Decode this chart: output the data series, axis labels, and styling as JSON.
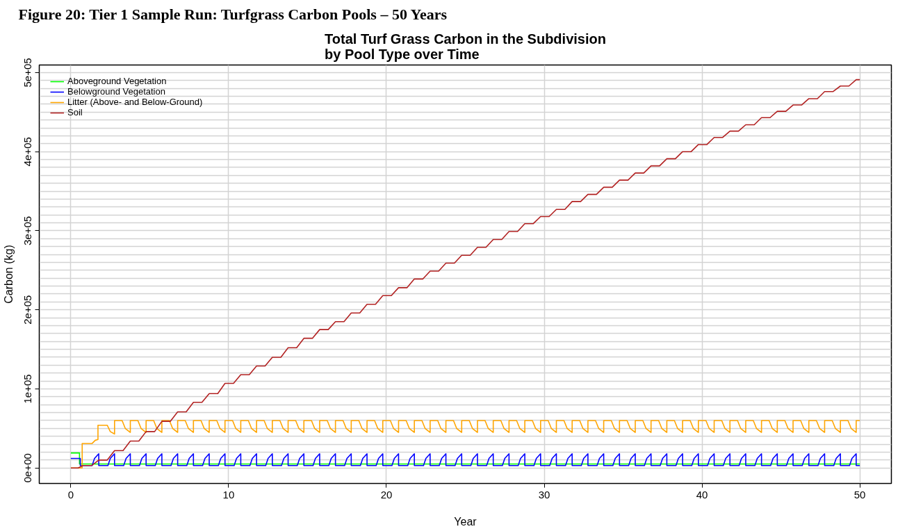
{
  "chart_data": {
    "type": "line",
    "title": "Total Turf Grass Carbon in the Subdivision\nby Pool Type over Time",
    "xlabel": "Year",
    "ylabel": "Carbon (kg)",
    "annotations": [
      "Figure 20: Tier 1 Sample Run: Turfgrass Carbon Pools – 50 Years"
    ],
    "xlim": [
      -2,
      52
    ],
    "ylim": [
      -19600,
      509600
    ],
    "xticks": [
      0,
      10,
      20,
      30,
      40,
      50
    ],
    "yticks": [
      {
        "value": 0,
        "label": "0e+00"
      },
      {
        "value": 100000,
        "label": "1e+05"
      },
      {
        "value": 200000,
        "label": "2e+05"
      },
      {
        "value": 300000,
        "label": "3e+05"
      },
      {
        "value": 400000,
        "label": "4e+05"
      },
      {
        "value": 500000,
        "label": "5e+05"
      }
    ],
    "grid": true,
    "legend": "top left",
    "marker": "none",
    "series": [
      {
        "name": "Aboveground Vegetation",
        "color": "#00ff00",
        "x": [
          0,
          0.55,
          0.55,
          50
        ],
        "values": [
          19000,
          19000,
          5000,
          5000
        ]
      },
      {
        "name": "Belowground Vegetation",
        "color": "#0000ff",
        "x": [
          0,
          0.6,
          0.6,
          1.35,
          1.5,
          1.77,
          1.77,
          2.35,
          2.5,
          2.77,
          2.77,
          3.35,
          3.5,
          3.77,
          3.77,
          4.35,
          4.5,
          4.77,
          4.77,
          5.35,
          5.5,
          5.77,
          5.77,
          6.35,
          6.5,
          6.77,
          6.77,
          7.35,
          7.5,
          7.77,
          7.77,
          8.35,
          8.5,
          8.77,
          8.77,
          9.35,
          9.5,
          9.77,
          9.77,
          10.35,
          10.5,
          10.77,
          10.77,
          11.35,
          11.5,
          11.77,
          11.77,
          12.35,
          12.5,
          12.77,
          12.77,
          13.35,
          13.5,
          13.77,
          13.77,
          14.35,
          14.5,
          14.77,
          14.77,
          15.35,
          15.5,
          15.77,
          15.77,
          16.35,
          16.5,
          16.77,
          16.77,
          17.35,
          17.5,
          17.77,
          17.77,
          18.35,
          18.5,
          18.77,
          18.77,
          19.35,
          19.5,
          19.77,
          19.77,
          20.35,
          20.5,
          20.77,
          20.77,
          21.35,
          21.5,
          21.77,
          21.77,
          22.35,
          22.5,
          22.77,
          22.77,
          23.35,
          23.5,
          23.77,
          23.77,
          24.35,
          24.5,
          24.77,
          24.77,
          25.35,
          25.5,
          25.77,
          25.77,
          26.35,
          26.5,
          26.77,
          26.77,
          27.35,
          27.5,
          27.77,
          27.77,
          28.35,
          28.5,
          28.77,
          28.77,
          29.35,
          29.5,
          29.77,
          29.77,
          30.35,
          30.5,
          30.77,
          30.77,
          31.35,
          31.5,
          31.77,
          31.77,
          32.35,
          32.5,
          32.77,
          32.77,
          33.35,
          33.5,
          33.77,
          33.77,
          34.35,
          34.5,
          34.77,
          34.77,
          35.35,
          35.5,
          35.77,
          35.77,
          36.35,
          36.5,
          36.77,
          36.77,
          37.35,
          37.5,
          37.77,
          37.77,
          38.35,
          38.5,
          38.77,
          38.77,
          39.35,
          39.5,
          39.77,
          39.77,
          40.35,
          40.5,
          40.77,
          40.77,
          41.35,
          41.5,
          41.77,
          41.77,
          42.35,
          42.5,
          42.77,
          42.77,
          43.35,
          43.5,
          43.77,
          43.77,
          44.35,
          44.5,
          44.77,
          44.77,
          45.35,
          45.5,
          45.77,
          45.77,
          46.35,
          46.5,
          46.77,
          46.77,
          47.35,
          47.5,
          47.77,
          47.77,
          48.35,
          48.5,
          48.77,
          48.77,
          49.35,
          49.5,
          49.77,
          49.77,
          50
        ],
        "values": [
          12000,
          12000,
          3000,
          3000,
          12000,
          18000,
          3000,
          3000,
          12000,
          18000,
          3000,
          3000,
          12000,
          18000,
          3000,
          3000,
          12000,
          18000,
          3000,
          3000,
          12000,
          18000,
          3000,
          3000,
          12000,
          18000,
          3000,
          3000,
          12000,
          18000,
          3000,
          3000,
          12000,
          18000,
          3000,
          3000,
          12000,
          18000,
          3000,
          3000,
          12000,
          18000,
          3000,
          3000,
          12000,
          18000,
          3000,
          3000,
          12000,
          18000,
          3000,
          3000,
          12000,
          18000,
          3000,
          3000,
          12000,
          18000,
          3000,
          3000,
          12000,
          18000,
          3000,
          3000,
          12000,
          18000,
          3000,
          3000,
          12000,
          18000,
          3000,
          3000,
          12000,
          18000,
          3000,
          3000,
          12000,
          18000,
          3000,
          3000,
          12000,
          18000,
          3000,
          3000,
          12000,
          18000,
          3000,
          3000,
          12000,
          18000,
          3000,
          3000,
          12000,
          18000,
          3000,
          3000,
          12000,
          18000,
          3000,
          3000,
          12000,
          18000,
          3000,
          3000,
          12000,
          18000,
          3000,
          3000,
          12000,
          18000,
          3000,
          3000,
          12000,
          18000,
          3000,
          3000,
          12000,
          18000,
          3000,
          3000,
          12000,
          18000,
          3000,
          3000,
          12000,
          18000,
          3000,
          3000,
          12000,
          18000,
          3000,
          3000,
          12000,
          18000,
          3000,
          3000,
          12000,
          18000,
          3000,
          3000,
          12000,
          18000,
          3000,
          3000,
          12000,
          18000,
          3000,
          3000,
          12000,
          18000,
          3000,
          3000,
          12000,
          18000,
          3000,
          3000,
          12000,
          18000,
          3000,
          3000,
          12000,
          18000,
          3000,
          3000,
          12000,
          18000,
          3000,
          3000,
          12000,
          18000,
          3000,
          3000,
          12000,
          18000,
          3000,
          3000,
          12000,
          18000,
          3000,
          3000,
          12000,
          18000,
          3000,
          3000,
          12000,
          18000,
          3000,
          3000,
          12000,
          18000,
          3000,
          3000,
          12000,
          18000,
          3000,
          3000,
          12000,
          18000,
          3000,
          3000
        ]
      },
      {
        "name": "Litter (Above- and Below-Ground)",
        "color": "#ffa500",
        "x": [
          0,
          0.72,
          0.72,
          1.35,
          1.55,
          1.72,
          1.72,
          2.31,
          2.5,
          2.77,
          2.77,
          3.25,
          3.45,
          3.77,
          3.77,
          4.25,
          4.45,
          4.77,
          4.77,
          5.25,
          5.45,
          5.77,
          5.77,
          6.25,
          6.45,
          6.77,
          6.77,
          7.25,
          7.45,
          7.77,
          7.77,
          8.25,
          8.45,
          8.77,
          8.77,
          9.25,
          9.45,
          9.77,
          9.77,
          10.25,
          10.45,
          10.77,
          10.77,
          11.25,
          11.45,
          11.77,
          11.77,
          12.25,
          12.45,
          12.77,
          12.77,
          13.25,
          13.45,
          13.77,
          13.77,
          14.25,
          14.45,
          14.77,
          14.77,
          15.25,
          15.45,
          15.77,
          15.77,
          16.25,
          16.45,
          16.77,
          16.77,
          17.25,
          17.45,
          17.77,
          17.77,
          18.25,
          18.45,
          18.77,
          18.77,
          19.25,
          19.45,
          19.77,
          19.77,
          20.25,
          20.45,
          20.77,
          20.77,
          21.25,
          21.45,
          21.77,
          21.77,
          22.25,
          22.45,
          22.77,
          22.77,
          23.25,
          23.45,
          23.77,
          23.77,
          24.25,
          24.45,
          24.77,
          24.77,
          25.25,
          25.45,
          25.77,
          25.77,
          26.25,
          26.45,
          26.77,
          26.77,
          27.25,
          27.45,
          27.77,
          27.77,
          28.25,
          28.45,
          28.77,
          28.77,
          29.25,
          29.45,
          29.77,
          29.77,
          30.25,
          30.45,
          30.77,
          30.77,
          31.25,
          31.45,
          31.77,
          31.77,
          32.25,
          32.45,
          32.77,
          32.77,
          33.25,
          33.45,
          33.77,
          33.77,
          34.25,
          34.45,
          34.77,
          34.77,
          35.25,
          35.45,
          35.77,
          35.77,
          36.25,
          36.45,
          36.77,
          36.77,
          37.25,
          37.45,
          37.77,
          37.77,
          38.25,
          38.45,
          38.77,
          38.77,
          39.25,
          39.45,
          39.77,
          39.77,
          40.25,
          40.45,
          40.77,
          40.77,
          41.25,
          41.45,
          41.77,
          41.77,
          42.25,
          42.45,
          42.77,
          42.77,
          43.25,
          43.45,
          43.77,
          43.77,
          44.25,
          44.45,
          44.77,
          44.77,
          45.25,
          45.45,
          45.77,
          45.77,
          46.25,
          46.45,
          46.77,
          46.77,
          47.25,
          47.45,
          47.77,
          47.77,
          48.25,
          48.45,
          48.77,
          48.77,
          49.25,
          49.45,
          49.77,
          49.77,
          50
        ],
        "values": [
          0,
          0,
          31000,
          31000,
          35000,
          36000,
          54000,
          54000,
          46000,
          43000,
          60000,
          60000,
          50000,
          45000,
          60000,
          60000,
          50000,
          45000,
          60000,
          60000,
          50000,
          45000,
          60000,
          60000,
          50000,
          45000,
          60000,
          60000,
          50000,
          45000,
          60000,
          60000,
          50000,
          45000,
          60000,
          60000,
          50000,
          45000,
          60000,
          60000,
          50000,
          45000,
          60000,
          60000,
          50000,
          45000,
          60000,
          60000,
          50000,
          45000,
          60000,
          60000,
          50000,
          45000,
          60000,
          60000,
          50000,
          45000,
          60000,
          60000,
          50000,
          45000,
          60000,
          60000,
          50000,
          45000,
          60000,
          60000,
          50000,
          45000,
          60000,
          60000,
          50000,
          45000,
          60000,
          60000,
          50000,
          45000,
          60000,
          60000,
          50000,
          45000,
          60000,
          60000,
          50000,
          45000,
          60000,
          60000,
          50000,
          45000,
          60000,
          60000,
          50000,
          45000,
          60000,
          60000,
          50000,
          45000,
          60000,
          60000,
          50000,
          45000,
          60000,
          60000,
          50000,
          45000,
          60000,
          60000,
          50000,
          45000,
          60000,
          60000,
          50000,
          45000,
          60000,
          60000,
          50000,
          45000,
          60000,
          60000,
          50000,
          45000,
          60000,
          60000,
          50000,
          45000,
          60000,
          60000,
          50000,
          45000,
          60000,
          60000,
          50000,
          45000,
          60000,
          60000,
          50000,
          45000,
          60000,
          60000,
          50000,
          45000,
          60000,
          60000,
          50000,
          45000,
          60000,
          60000,
          50000,
          45000,
          60000,
          60000,
          50000,
          45000,
          60000,
          60000,
          50000,
          45000,
          60000,
          60000,
          50000,
          45000,
          60000,
          60000,
          50000,
          45000,
          60000,
          60000,
          50000,
          45000,
          60000,
          60000,
          50000,
          45000,
          60000,
          60000,
          50000,
          45000,
          60000,
          60000,
          50000,
          45000,
          60000,
          60000,
          50000,
          45000,
          60000,
          60000,
          50000,
          45000,
          60000,
          60000,
          50000,
          45000,
          60000,
          60000,
          50000,
          45000,
          60000,
          60000
        ]
      },
      {
        "name": "Soil",
        "color": "#b22222",
        "x": [
          0,
          0.46,
          0.77,
          1.31,
          1.77,
          2.31,
          2.77,
          3.31,
          3.77,
          4.31,
          4.77,
          5.31,
          5.77,
          6.31,
          6.77,
          7.31,
          7.77,
          8.31,
          8.77,
          9.31,
          9.77,
          10.31,
          10.77,
          11.31,
          11.77,
          12.31,
          12.77,
          13.31,
          13.77,
          14.31,
          14.77,
          15.31,
          15.77,
          16.31,
          16.77,
          17.31,
          17.77,
          18.31,
          18.77,
          19.31,
          19.77,
          20.31,
          20.77,
          21.31,
          21.77,
          22.31,
          22.77,
          23.31,
          23.77,
          24.31,
          24.77,
          25.31,
          25.77,
          26.31,
          26.77,
          27.31,
          27.77,
          28.31,
          28.77,
          29.31,
          29.77,
          30.31,
          30.77,
          31.31,
          31.77,
          32.31,
          32.77,
          33.31,
          33.77,
          34.31,
          34.77,
          35.31,
          35.77,
          36.31,
          36.77,
          37.31,
          37.77,
          38.31,
          38.77,
          39.31,
          39.77,
          40.31,
          40.77,
          41.31,
          41.77,
          42.31,
          42.77,
          43.31,
          43.77,
          44.31,
          44.77,
          45.31,
          45.77,
          46.31,
          46.77,
          47.31,
          47.77,
          48.31,
          48.77,
          49.31,
          49.77,
          50
        ],
        "values": [
          0,
          0,
          3000,
          3000,
          10000,
          10000,
          22000,
          22000,
          34000,
          34000,
          46000,
          46000,
          59000,
          59000,
          71000,
          71000,
          83000,
          83000,
          94000,
          94000,
          107000,
          107000,
          118000,
          118000,
          129000,
          129000,
          140000,
          140000,
          152000,
          152000,
          164000,
          164000,
          175000,
          175000,
          185000,
          185000,
          196000,
          196000,
          207000,
          207000,
          218000,
          218000,
          228000,
          228000,
          239000,
          239000,
          249000,
          249000,
          259000,
          259000,
          269000,
          269000,
          279000,
          279000,
          289000,
          289000,
          299000,
          299000,
          309000,
          309000,
          318000,
          318000,
          327000,
          327000,
          337000,
          337000,
          346000,
          346000,
          355000,
          355000,
          364000,
          364000,
          373000,
          373000,
          382000,
          382000,
          391000,
          391000,
          400000,
          400000,
          409000,
          409000,
          418000,
          418000,
          426000,
          426000,
          434000,
          434000,
          443000,
          443000,
          451000,
          451000,
          459000,
          459000,
          467000,
          467000,
          476000,
          476000,
          483000,
          483000,
          491000,
          491000
        ]
      }
    ]
  }
}
